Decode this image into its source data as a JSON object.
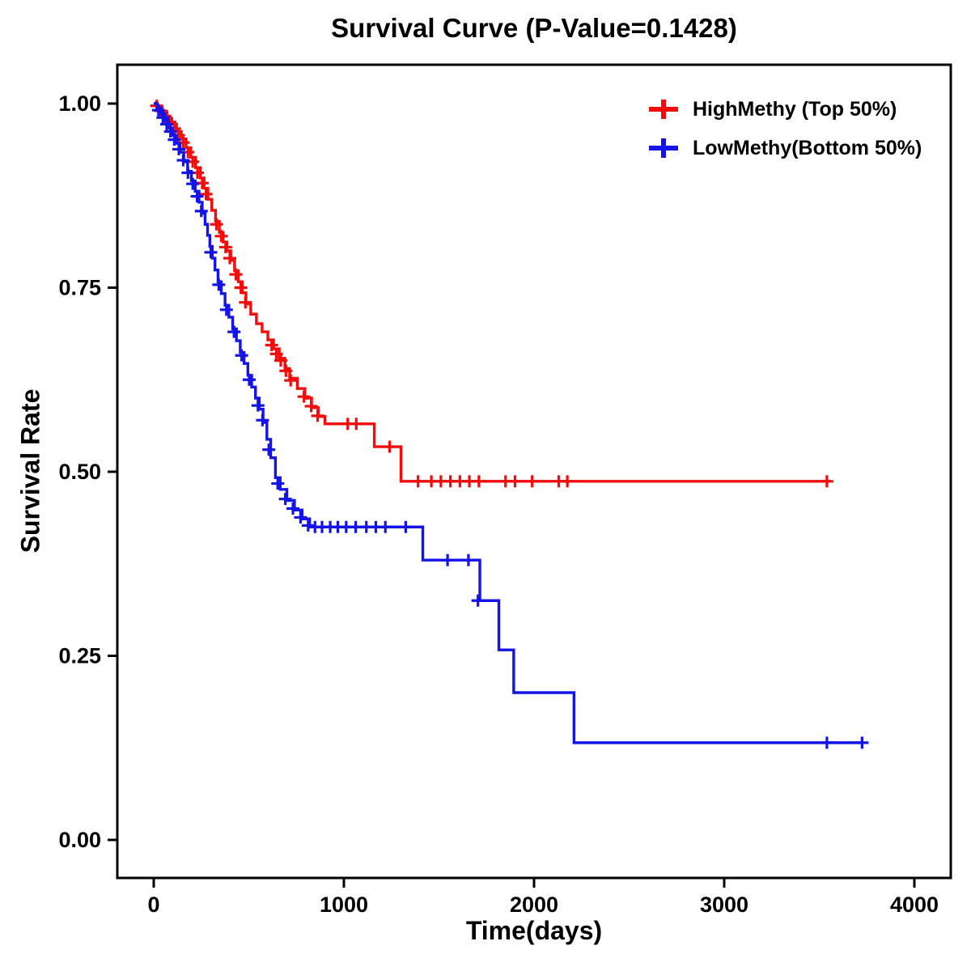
{
  "chart_data": {
    "type": "line",
    "chart_kind": "kaplan-meier-step-curve",
    "title": "Survival Curve (P-Value=0.1428)",
    "p_value": "0.1428",
    "xlabel": "Time(days)",
    "ylabel": "Survival Rate",
    "legend_position": "top-right-inside",
    "grid": false,
    "x_axis": {
      "range": [
        0,
        4000
      ],
      "ticks": [
        {
          "label": "0",
          "value": 0
        },
        {
          "label": "1000",
          "value": 1000
        },
        {
          "label": "2000",
          "value": 2000
        },
        {
          "label": "3000",
          "value": 3000
        },
        {
          "label": "4000",
          "value": 4000
        }
      ]
    },
    "y_axis": {
      "range": [
        0,
        1
      ],
      "ticks": [
        {
          "label": "0.00",
          "value": 0.0
        },
        {
          "label": "0.25",
          "value": 0.25
        },
        {
          "label": "0.50",
          "value": 0.5
        },
        {
          "label": "0.75",
          "value": 0.75
        },
        {
          "label": "1.00",
          "value": 1.0
        }
      ]
    },
    "series": [
      {
        "id": "HighMethy",
        "name": "HighMethy (Top 50%)",
        "color": "#f20d0d",
        "steps": [
          [
            0,
            1.0
          ],
          [
            20,
            0.995
          ],
          [
            45,
            0.988
          ],
          [
            70,
            0.98
          ],
          [
            95,
            0.972
          ],
          [
            120,
            0.962
          ],
          [
            145,
            0.952
          ],
          [
            170,
            0.94
          ],
          [
            195,
            0.927
          ],
          [
            220,
            0.913
          ],
          [
            245,
            0.899
          ],
          [
            265,
            0.885
          ],
          [
            285,
            0.87
          ],
          [
            305,
            0.855
          ],
          [
            325,
            0.84
          ],
          [
            345,
            0.825
          ],
          [
            365,
            0.812
          ],
          [
            385,
            0.8
          ],
          [
            405,
            0.787
          ],
          [
            425,
            0.773
          ],
          [
            445,
            0.758
          ],
          [
            465,
            0.743
          ],
          [
            485,
            0.728
          ],
          [
            510,
            0.714
          ],
          [
            540,
            0.701
          ],
          [
            570,
            0.69
          ],
          [
            600,
            0.679
          ],
          [
            630,
            0.667
          ],
          [
            660,
            0.654
          ],
          [
            690,
            0.64
          ],
          [
            715,
            0.627
          ],
          [
            755,
            0.613
          ],
          [
            795,
            0.6
          ],
          [
            830,
            0.587
          ],
          [
            865,
            0.575
          ],
          [
            900,
            0.565
          ],
          [
            1140,
            0.565
          ],
          [
            1160,
            0.534
          ],
          [
            1285,
            0.534
          ],
          [
            1300,
            0.487
          ],
          [
            3560,
            0.487
          ]
        ],
        "censors": [
          [
            15,
            0.997
          ],
          [
            40,
            0.99
          ],
          [
            60,
            0.983
          ],
          [
            85,
            0.975
          ],
          [
            110,
            0.966
          ],
          [
            130,
            0.957
          ],
          [
            155,
            0.947
          ],
          [
            180,
            0.934
          ],
          [
            205,
            0.921
          ],
          [
            230,
            0.906
          ],
          [
            255,
            0.892
          ],
          [
            275,
            0.877
          ],
          [
            330,
            0.836
          ],
          [
            355,
            0.82
          ],
          [
            378,
            0.805
          ],
          [
            400,
            0.79
          ],
          [
            432,
            0.768
          ],
          [
            458,
            0.75
          ],
          [
            482,
            0.73
          ],
          [
            620,
            0.672
          ],
          [
            645,
            0.66
          ],
          [
            668,
            0.651
          ],
          [
            695,
            0.637
          ],
          [
            720,
            0.624
          ],
          [
            790,
            0.602
          ],
          [
            828,
            0.589
          ],
          [
            862,
            0.576
          ],
          [
            1020,
            0.565
          ],
          [
            1065,
            0.565
          ],
          [
            1240,
            0.534
          ],
          [
            1390,
            0.487
          ],
          [
            1460,
            0.487
          ],
          [
            1510,
            0.487
          ],
          [
            1560,
            0.487
          ],
          [
            1610,
            0.487
          ],
          [
            1660,
            0.487
          ],
          [
            1710,
            0.487
          ],
          [
            1850,
            0.487
          ],
          [
            1900,
            0.487
          ],
          [
            1990,
            0.487
          ],
          [
            2130,
            0.487
          ],
          [
            2175,
            0.487
          ],
          [
            3540,
            0.487
          ]
        ]
      },
      {
        "id": "LowMethy",
        "name": "LowMethy(Bottom 50%)",
        "color": "#1414e8",
        "steps": [
          [
            0,
            1.0
          ],
          [
            18,
            0.994
          ],
          [
            38,
            0.986
          ],
          [
            58,
            0.977
          ],
          [
            78,
            0.967
          ],
          [
            98,
            0.957
          ],
          [
            118,
            0.946
          ],
          [
            138,
            0.934
          ],
          [
            158,
            0.921
          ],
          [
            178,
            0.908
          ],
          [
            198,
            0.895
          ],
          [
            218,
            0.881
          ],
          [
            238,
            0.866
          ],
          [
            255,
            0.851
          ],
          [
            270,
            0.836
          ],
          [
            283,
            0.821
          ],
          [
            295,
            0.806
          ],
          [
            308,
            0.79
          ],
          [
            322,
            0.774
          ],
          [
            338,
            0.758
          ],
          [
            355,
            0.742
          ],
          [
            375,
            0.726
          ],
          [
            395,
            0.71
          ],
          [
            415,
            0.694
          ],
          [
            435,
            0.678
          ],
          [
            455,
            0.662
          ],
          [
            475,
            0.647
          ],
          [
            495,
            0.631
          ],
          [
            515,
            0.615
          ],
          [
            535,
            0.6
          ],
          [
            555,
            0.585
          ],
          [
            575,
            0.567
          ],
          [
            595,
            0.544
          ],
          [
            615,
            0.519
          ],
          [
            640,
            0.492
          ],
          [
            665,
            0.476
          ],
          [
            700,
            0.461
          ],
          [
            740,
            0.448
          ],
          [
            780,
            0.436
          ],
          [
            820,
            0.425
          ],
          [
            1390,
            0.425
          ],
          [
            1415,
            0.38
          ],
          [
            1700,
            0.38
          ],
          [
            1715,
            0.325
          ],
          [
            1800,
            0.325
          ],
          [
            1815,
            0.258
          ],
          [
            1880,
            0.258
          ],
          [
            1893,
            0.2
          ],
          [
            2195,
            0.2
          ],
          [
            2210,
            0.132
          ],
          [
            3730,
            0.132
          ]
        ],
        "censors": [
          [
            25,
            0.991
          ],
          [
            48,
            0.981
          ],
          [
            68,
            0.972
          ],
          [
            88,
            0.962
          ],
          [
            108,
            0.951
          ],
          [
            132,
            0.938
          ],
          [
            155,
            0.923
          ],
          [
            180,
            0.906
          ],
          [
            205,
            0.891
          ],
          [
            228,
            0.874
          ],
          [
            250,
            0.854
          ],
          [
            300,
            0.798
          ],
          [
            342,
            0.754
          ],
          [
            382,
            0.72
          ],
          [
            422,
            0.69
          ],
          [
            462,
            0.658
          ],
          [
            502,
            0.625
          ],
          [
            548,
            0.59
          ],
          [
            572,
            0.57
          ],
          [
            605,
            0.53
          ],
          [
            652,
            0.484
          ],
          [
            692,
            0.463
          ],
          [
            732,
            0.45
          ],
          [
            772,
            0.438
          ],
          [
            812,
            0.427
          ],
          [
            848,
            0.425
          ],
          [
            885,
            0.425
          ],
          [
            928,
            0.425
          ],
          [
            968,
            0.425
          ],
          [
            1012,
            0.425
          ],
          [
            1062,
            0.425
          ],
          [
            1118,
            0.425
          ],
          [
            1168,
            0.425
          ],
          [
            1218,
            0.425
          ],
          [
            1325,
            0.425
          ],
          [
            1545,
            0.38
          ],
          [
            1655,
            0.38
          ],
          [
            1705,
            0.325
          ],
          [
            3540,
            0.132
          ],
          [
            3725,
            0.132
          ]
        ]
      }
    ]
  }
}
